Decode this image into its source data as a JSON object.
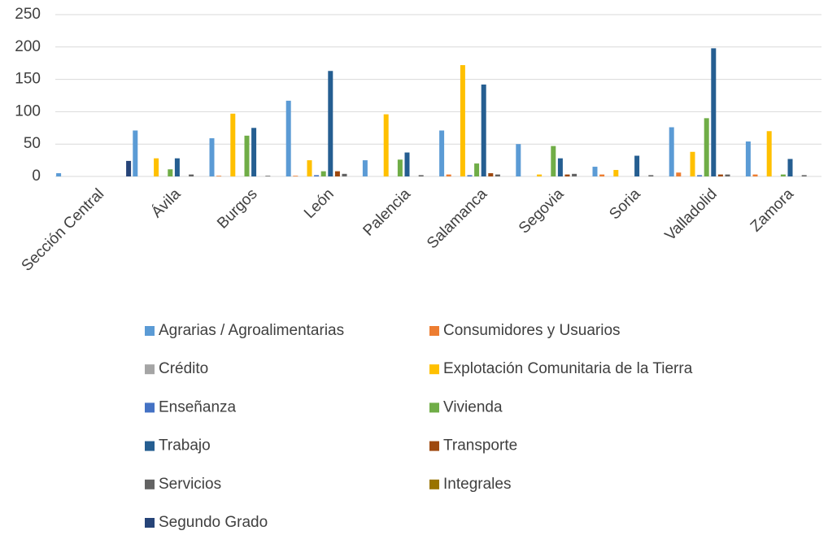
{
  "chart_data": {
    "type": "bar",
    "categories": [
      "Sección Central",
      "Ávila",
      "Burgos",
      "León",
      "Palencia",
      "Salamanca",
      "Segovia",
      "Soria",
      "Valladolid",
      "Zamora"
    ],
    "series": [
      {
        "name": "Agrarias / Agroalimentarias",
        "color": "#5b9bd5",
        "values": [
          5,
          71,
          59,
          117,
          25,
          71,
          50,
          15,
          76,
          54
        ]
      },
      {
        "name": "Consumidores y Usuarios",
        "color": "#ed7d31",
        "values": [
          0,
          0,
          1,
          1,
          0,
          3,
          0,
          3,
          6,
          3
        ]
      },
      {
        "name": "Crédito",
        "color": "#a5a5a5",
        "values": [
          0,
          0,
          0,
          0,
          0,
          0,
          0,
          0,
          0,
          0
        ]
      },
      {
        "name": "Explotación Comunitaria de la Tierra",
        "color": "#ffc000",
        "values": [
          0,
          28,
          97,
          25,
          96,
          172,
          3,
          10,
          38,
          70
        ]
      },
      {
        "name": "Enseñanza",
        "color": "#4472c4",
        "values": [
          0,
          0,
          0,
          2,
          0,
          2,
          0,
          0,
          2,
          0
        ]
      },
      {
        "name": "Vivienda",
        "color": "#70ad47",
        "values": [
          0,
          11,
          63,
          8,
          26,
          20,
          47,
          0,
          90,
          3
        ]
      },
      {
        "name": "Trabajo",
        "color": "#255e91",
        "values": [
          0,
          28,
          75,
          163,
          37,
          142,
          28,
          32,
          198,
          27
        ]
      },
      {
        "name": "Transporte",
        "color": "#9e480e",
        "values": [
          0,
          0,
          0,
          8,
          0,
          5,
          3,
          0,
          3,
          0
        ]
      },
      {
        "name": "Servicios",
        "color": "#636363",
        "values": [
          0,
          3,
          1,
          4,
          2,
          3,
          4,
          2,
          3,
          2
        ]
      },
      {
        "name": "Integrales",
        "color": "#997300",
        "values": [
          0,
          0,
          0,
          0,
          0,
          0,
          0,
          0,
          0,
          0
        ]
      },
      {
        "name": "Segundo Grado",
        "color": "#264478",
        "values": [
          24,
          0,
          0,
          0,
          0,
          0,
          0,
          0,
          0,
          0
        ]
      }
    ],
    "ylim": [
      0,
      250
    ],
    "yticks": [
      0,
      50,
      100,
      150,
      200,
      250
    ],
    "grid": true,
    "legend": "bottom"
  }
}
